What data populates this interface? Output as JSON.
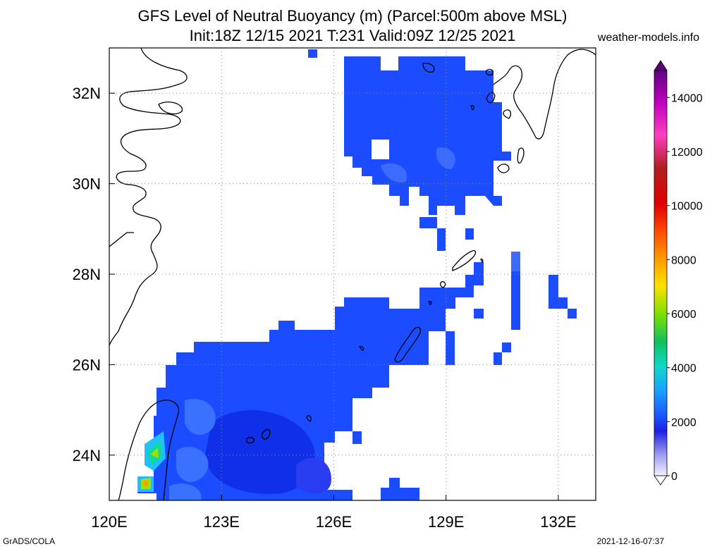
{
  "title_line1": "GFS Level of Neutral Buoyancy (m) (Parcel:500m above MSL)",
  "title_line2": "Init:18Z 12/15 2021 T:231 Valid:09Z 12/25 2021",
  "credit": "weather-models.info",
  "footer_left": "GrADS/COLA",
  "footer_right": "2021-12-16-07:37",
  "map": {
    "lon_range": [
      120,
      133
    ],
    "lat_range": [
      23,
      33
    ],
    "x_ticks": [
      {
        "value": 120,
        "label": "120E"
      },
      {
        "value": 123,
        "label": "123E"
      },
      {
        "value": 126,
        "label": "126E"
      },
      {
        "value": 129,
        "label": "129E"
      },
      {
        "value": 132,
        "label": "132E"
      }
    ],
    "y_ticks": [
      {
        "value": 24,
        "label": "24N"
      },
      {
        "value": 26,
        "label": "26N"
      },
      {
        "value": 28,
        "label": "28N"
      },
      {
        "value": 30,
        "label": "30N"
      },
      {
        "value": 32,
        "label": "32N"
      }
    ],
    "grid": "dotted"
  },
  "colorbar": {
    "labels": [
      "0",
      "2000",
      "4000",
      "6000",
      "8000",
      "10000",
      "12000",
      "14000"
    ],
    "range": [
      0,
      15000
    ]
  }
}
